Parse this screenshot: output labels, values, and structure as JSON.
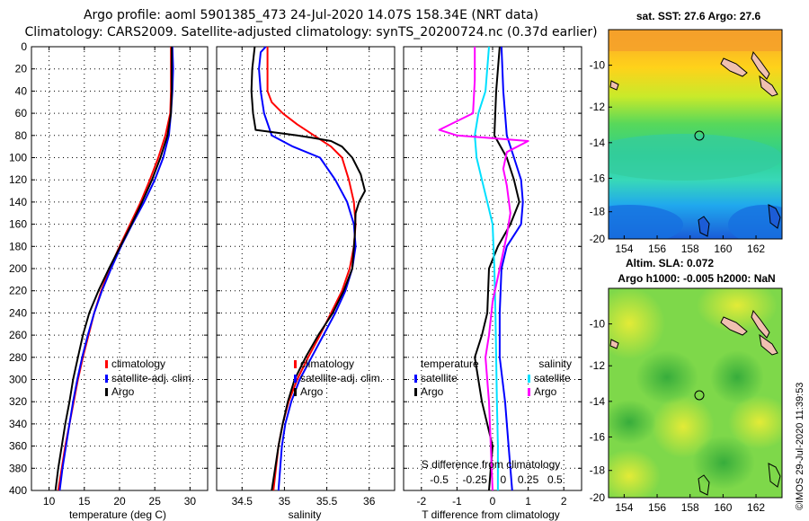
{
  "title": {
    "line1": "Argo profile: aoml 5901385_473 24-Jul-2020 14.07S 158.34E (NRT data)",
    "line2": "Climatology: CARS2009. Satellite-adjusted climatology: synTS_20200724.nc (0.37d earlier)"
  },
  "colors": {
    "argo": "#000000",
    "climatology": "#ff0000",
    "satellite": "#0000ff",
    "sat_salinity": "#00e0ff",
    "salinity_diff": "#ff00ff"
  },
  "chart_data": [
    {
      "type": "line",
      "panel": "temperature",
      "xlabel": "temperature (deg C)",
      "ylabel": "depth",
      "xlim": [
        7.5,
        32.5
      ],
      "ylim": [
        400,
        0
      ],
      "xticks": [
        10,
        15,
        20,
        25,
        30
      ],
      "yticks": [
        0,
        20,
        40,
        60,
        80,
        100,
        120,
        140,
        160,
        180,
        200,
        220,
        240,
        260,
        280,
        300,
        320,
        340,
        360,
        380,
        400
      ],
      "legend_entries": [
        "climatology",
        "satellite-adj. clim.",
        "Argo"
      ],
      "series": [
        {
          "name": "climatology",
          "color": "#ff0000",
          "points": [
            [
              27.3,
              0
            ],
            [
              27.3,
              40
            ],
            [
              27.2,
              60
            ],
            [
              26.5,
              80
            ],
            [
              25.5,
              100
            ],
            [
              24.3,
              120
            ],
            [
              23.0,
              140
            ],
            [
              21.5,
              160
            ],
            [
              20.0,
              180
            ],
            [
              18.6,
              200
            ],
            [
              17.4,
              220
            ],
            [
              16.4,
              240
            ],
            [
              15.6,
              260
            ],
            [
              14.8,
              280
            ],
            [
              14.1,
              300
            ],
            [
              13.5,
              320
            ],
            [
              12.9,
              340
            ],
            [
              12.3,
              360
            ],
            [
              11.8,
              380
            ],
            [
              11.3,
              400
            ]
          ]
        },
        {
          "name": "satellite-adj. clim.",
          "color": "#0000ff",
          "points": [
            [
              27.5,
              0
            ],
            [
              27.6,
              20
            ],
            [
              27.5,
              40
            ],
            [
              27.3,
              60
            ],
            [
              27.0,
              80
            ],
            [
              26.2,
              100
            ],
            [
              25.0,
              120
            ],
            [
              23.5,
              140
            ],
            [
              21.8,
              160
            ],
            [
              20.2,
              180
            ],
            [
              18.8,
              200
            ],
            [
              17.5,
              220
            ],
            [
              16.4,
              240
            ],
            [
              15.5,
              260
            ],
            [
              14.7,
              280
            ],
            [
              14.0,
              300
            ],
            [
              13.4,
              320
            ],
            [
              12.9,
              340
            ],
            [
              12.4,
              360
            ],
            [
              11.9,
              380
            ],
            [
              11.5,
              400
            ]
          ]
        },
        {
          "name": "Argo",
          "color": "#000000",
          "points": [
            [
              27.4,
              0
            ],
            [
              27.4,
              40
            ],
            [
              27.3,
              60
            ],
            [
              26.8,
              80
            ],
            [
              25.8,
              100
            ],
            [
              24.6,
              120
            ],
            [
              23.2,
              140
            ],
            [
              21.7,
              160
            ],
            [
              20.1,
              180
            ],
            [
              18.5,
              200
            ],
            [
              17.0,
              220
            ],
            [
              15.7,
              240
            ],
            [
              14.8,
              260
            ],
            [
              14.1,
              280
            ],
            [
              13.4,
              300
            ],
            [
              12.9,
              320
            ],
            [
              12.3,
              340
            ],
            [
              11.8,
              360
            ],
            [
              11.3,
              380
            ],
            [
              10.9,
              400
            ]
          ]
        }
      ]
    },
    {
      "type": "line",
      "panel": "salinity",
      "xlabel": "salinity",
      "ylabel": "depth",
      "xlim": [
        34.2,
        36.3
      ],
      "ylim": [
        400,
        0
      ],
      "xticks": [
        34.5,
        35,
        35.5,
        36
      ],
      "legend_entries": [
        "climatology",
        "satellite-adj. clim.",
        "Argo"
      ],
      "series": [
        {
          "name": "climatology",
          "color": "#ff0000",
          "points": [
            [
              34.8,
              0
            ],
            [
              34.8,
              40
            ],
            [
              34.85,
              50
            ],
            [
              34.98,
              60
            ],
            [
              35.15,
              70
            ],
            [
              35.35,
              80
            ],
            [
              35.55,
              90
            ],
            [
              35.68,
              100
            ],
            [
              35.76,
              120
            ],
            [
              35.82,
              140
            ],
            [
              35.84,
              160
            ],
            [
              35.82,
              180
            ],
            [
              35.77,
              200
            ],
            [
              35.68,
              220
            ],
            [
              35.55,
              240
            ],
            [
              35.42,
              260
            ],
            [
              35.28,
              280
            ],
            [
              35.15,
              300
            ],
            [
              35.05,
              320
            ],
            [
              34.98,
              340
            ],
            [
              34.93,
              360
            ],
            [
              34.9,
              380
            ],
            [
              34.87,
              400
            ]
          ]
        },
        {
          "name": "satellite-adj. clim.",
          "color": "#0000ff",
          "points": [
            [
              34.78,
              0
            ],
            [
              34.72,
              5
            ],
            [
              34.7,
              20
            ],
            [
              34.72,
              40
            ],
            [
              34.76,
              60
            ],
            [
              34.85,
              80
            ],
            [
              35.1,
              90
            ],
            [
              35.42,
              100
            ],
            [
              35.6,
              120
            ],
            [
              35.74,
              140
            ],
            [
              35.82,
              160
            ],
            [
              35.84,
              180
            ],
            [
              35.8,
              200
            ],
            [
              35.72,
              220
            ],
            [
              35.6,
              240
            ],
            [
              35.46,
              260
            ],
            [
              35.32,
              280
            ],
            [
              35.18,
              300
            ],
            [
              35.08,
              320
            ],
            [
              35.01,
              340
            ],
            [
              34.97,
              360
            ],
            [
              34.95,
              380
            ],
            [
              34.93,
              400
            ]
          ]
        },
        {
          "name": "Argo",
          "color": "#000000",
          "points": [
            [
              34.65,
              0
            ],
            [
              34.62,
              20
            ],
            [
              34.61,
              40
            ],
            [
              34.63,
              60
            ],
            [
              34.66,
              75
            ],
            [
              35.15,
              80
            ],
            [
              35.32,
              82
            ],
            [
              35.55,
              85
            ],
            [
              35.68,
              90
            ],
            [
              35.8,
              100
            ],
            [
              35.9,
              115
            ],
            [
              35.95,
              130
            ],
            [
              35.88,
              140
            ],
            [
              35.84,
              150
            ],
            [
              35.83,
              170
            ],
            [
              35.8,
              200
            ],
            [
              35.7,
              220
            ],
            [
              35.57,
              240
            ],
            [
              35.4,
              260
            ],
            [
              35.25,
              280
            ],
            [
              35.12,
              300
            ],
            [
              35.04,
              320
            ],
            [
              34.98,
              340
            ],
            [
              34.93,
              360
            ],
            [
              34.89,
              380
            ],
            [
              34.85,
              400
            ]
          ]
        }
      ]
    },
    {
      "type": "line",
      "panel": "difference",
      "xlabel": "T difference from climatology",
      "xlabel_top": "S difference from climatology",
      "xlim": [
        -2.5,
        2.5
      ],
      "ylim": [
        400,
        0
      ],
      "xticks": [
        -2,
        -1,
        0,
        1,
        2
      ],
      "xticks_top_labels": [
        "-0.5",
        "-0.25",
        "0",
        "0.25",
        "0.5"
      ],
      "legend_temperature_title": "temperature",
      "legend_salinity_title": "salinity",
      "legend_temperature_entries": [
        "satellite",
        "Argo"
      ],
      "legend_salinity_entries": [
        "satellite",
        "Argo"
      ],
      "series": [
        {
          "name": "temperature satellite",
          "color": "#0000ff",
          "points": [
            [
              0.25,
              0
            ],
            [
              0.3,
              40
            ],
            [
              0.4,
              80
            ],
            [
              0.6,
              100
            ],
            [
              0.8,
              120
            ],
            [
              0.85,
              140
            ],
            [
              0.8,
              160
            ],
            [
              0.4,
              180
            ],
            [
              0.25,
              200
            ],
            [
              0.2,
              240
            ],
            [
              0.2,
              280
            ],
            [
              0.35,
              320
            ],
            [
              0.45,
              360
            ],
            [
              0.55,
              400
            ]
          ]
        },
        {
          "name": "Argo (T)",
          "color": "#000000",
          "points": [
            [
              0.2,
              0
            ],
            [
              0.1,
              40
            ],
            [
              0.05,
              80
            ],
            [
              0.4,
              100
            ],
            [
              0.6,
              120
            ],
            [
              0.75,
              140
            ],
            [
              0.5,
              160
            ],
            [
              0.15,
              180
            ],
            [
              -0.1,
              200
            ],
            [
              -0.15,
              240
            ],
            [
              -0.3,
              260
            ],
            [
              -0.5,
              280
            ],
            [
              -0.3,
              320
            ],
            [
              0.0,
              360
            ],
            [
              -0.1,
              400
            ]
          ]
        },
        {
          "name": "salinity satellite",
          "color": "#00e0ff",
          "points": [
            [
              -0.1,
              0
            ],
            [
              -0.2,
              40
            ],
            [
              -0.4,
              60
            ],
            [
              -0.5,
              80
            ],
            [
              -0.45,
              100
            ],
            [
              -0.3,
              120
            ],
            [
              -0.15,
              140
            ],
            [
              0.0,
              160
            ],
            [
              0.05,
              200
            ],
            [
              0.08,
              240
            ],
            [
              0.1,
              280
            ],
            [
              0.12,
              320
            ],
            [
              0.15,
              360
            ],
            [
              0.15,
              400
            ]
          ]
        },
        {
          "name": "Argo (S)",
          "color": "#ff00ff",
          "points": [
            [
              -0.5,
              0
            ],
            [
              -0.5,
              30
            ],
            [
              -0.55,
              60
            ],
            [
              -1.5,
              75
            ],
            [
              -1.0,
              80
            ],
            [
              1.0,
              85
            ],
            [
              0.4,
              95
            ],
            [
              0.3,
              110
            ],
            [
              0.4,
              125
            ],
            [
              0.5,
              150
            ],
            [
              0.4,
              170
            ],
            [
              0.2,
              200
            ],
            [
              0.0,
              230
            ],
            [
              -0.1,
              260
            ],
            [
              -0.2,
              280
            ],
            [
              -0.1,
              320
            ],
            [
              -0.05,
              360
            ],
            [
              0.0,
              400
            ]
          ]
        }
      ]
    }
  ],
  "maps": {
    "top": {
      "title": "sat. SST: 27.6 Argo: 27.6",
      "xticks": [
        "154",
        "156",
        "158",
        "160",
        "162"
      ],
      "yticks": [
        "-10",
        "-12",
        "-14",
        "-16",
        "-18",
        "-20"
      ]
    },
    "bottom": {
      "title_line1": "Altim. SLA: 0.072",
      "title_line2": "Argo h1000: -0.005 h2000: NaN",
      "xticks": [
        "154",
        "156",
        "158",
        "160",
        "162"
      ],
      "yticks": [
        "-10",
        "-12",
        "-14",
        "-16",
        "-18",
        "-20"
      ]
    }
  },
  "credit": "©IMOS 29-Jul-2020 11:39:53"
}
